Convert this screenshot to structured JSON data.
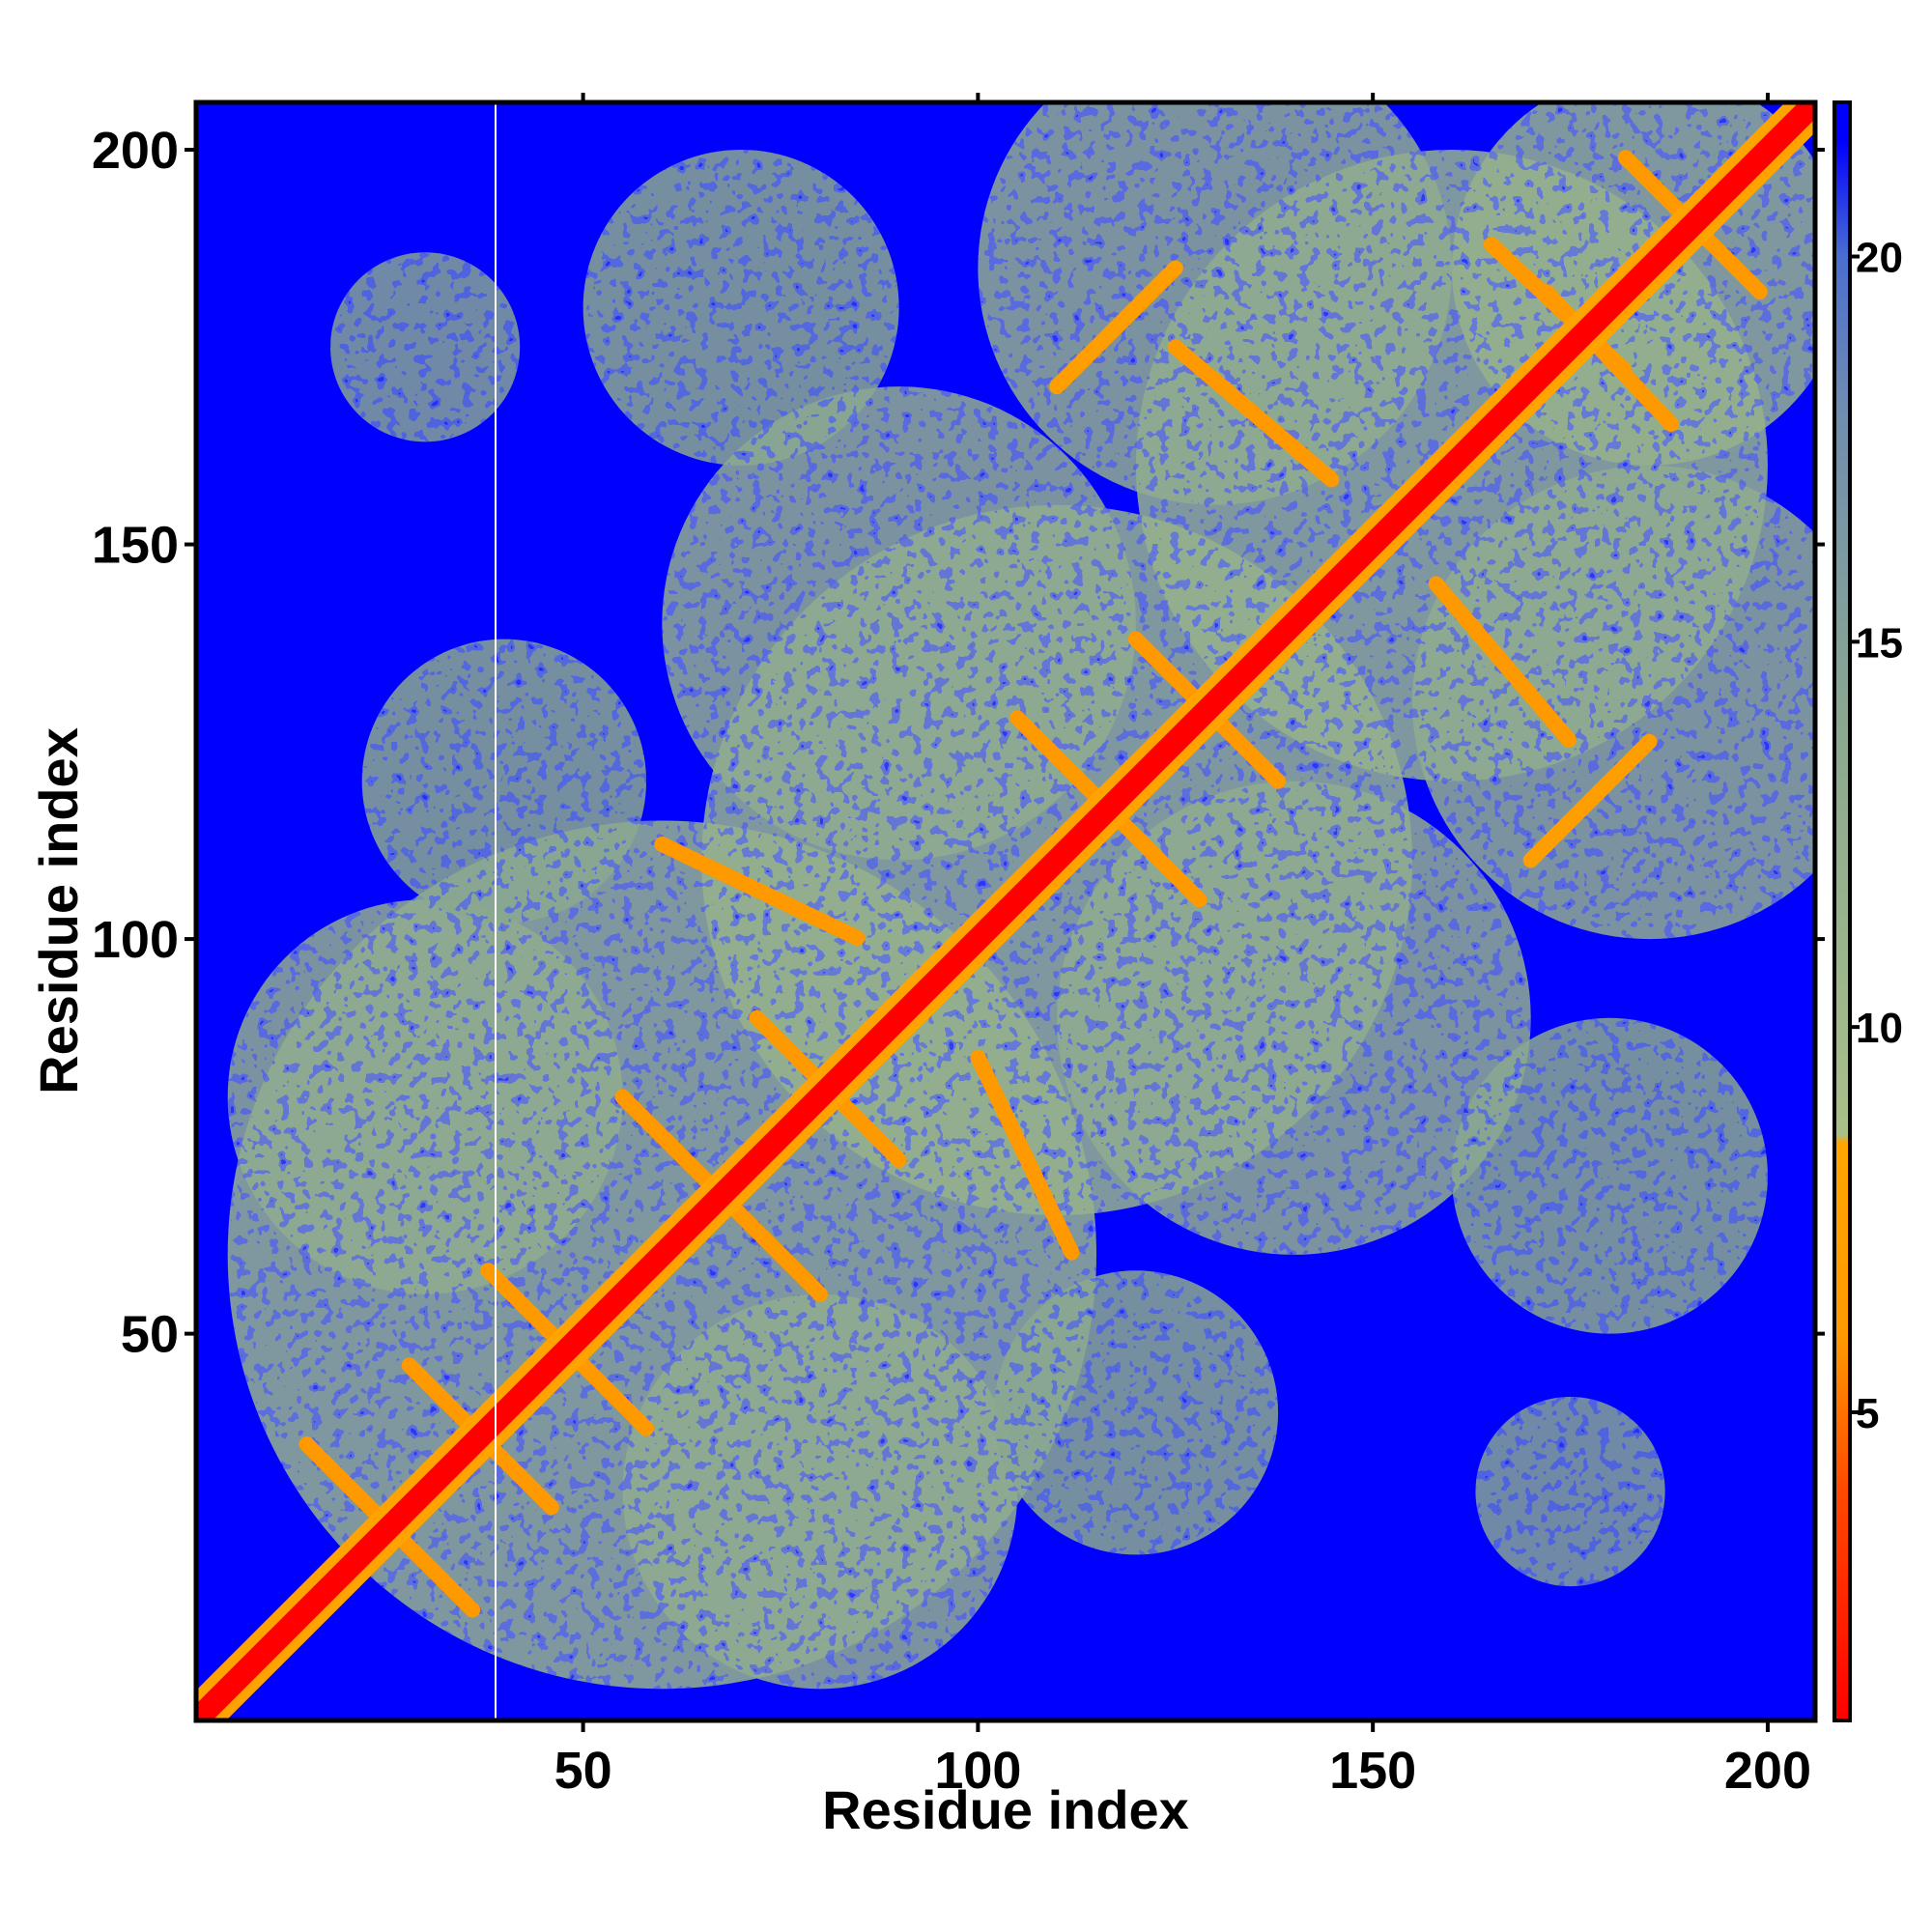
{
  "chart_data": {
    "type": "heatmap",
    "title": "",
    "xlabel": "Residue index",
    "ylabel": "Residue index",
    "xlim": [
      1,
      206
    ],
    "ylim": [
      1,
      206
    ],
    "x_ticks": [
      50,
      100,
      150,
      200
    ],
    "y_ticks": [
      50,
      100,
      150,
      200
    ],
    "n_residues": 206,
    "colorbar": {
      "range": [
        1,
        22
      ],
      "ticks": [
        5,
        10,
        15,
        20
      ],
      "stops": [
        {
          "value": 1,
          "color": "#ff0000"
        },
        {
          "value": 4,
          "color": "#ff4a00"
        },
        {
          "value": 6,
          "color": "#ff9900"
        },
        {
          "value": 8.5,
          "color": "#ffa500"
        },
        {
          "value": 8.6,
          "color": "#a8c088"
        },
        {
          "value": 14,
          "color": "#8aa890"
        },
        {
          "value": 18,
          "color": "#6f8db0"
        },
        {
          "value": 20,
          "color": "#4a6ed0"
        },
        {
          "value": 21.5,
          "color": "#0000ff"
        }
      ]
    },
    "background_color": "#0000ff",
    "diagonal_color": "#ff0000",
    "contact_regions": [
      {
        "x_center": 60,
        "y_center": 60,
        "radius": 55,
        "value": 12
      },
      {
        "x_center": 110,
        "y_center": 110,
        "radius": 45,
        "value": 12
      },
      {
        "x_center": 160,
        "y_center": 160,
        "radius": 40,
        "value": 12
      },
      {
        "x_center": 185,
        "y_center": 185,
        "radius": 25,
        "value": 12
      },
      {
        "x_center": 30,
        "y_center": 80,
        "radius": 25,
        "value": 13
      },
      {
        "x_center": 80,
        "y_center": 30,
        "radius": 25,
        "value": 13
      },
      {
        "x_center": 90,
        "y_center": 140,
        "radius": 30,
        "value": 13
      },
      {
        "x_center": 140,
        "y_center": 90,
        "radius": 30,
        "value": 13
      },
      {
        "x_center": 130,
        "y_center": 185,
        "radius": 30,
        "value": 13
      },
      {
        "x_center": 185,
        "y_center": 130,
        "radius": 30,
        "value": 13
      },
      {
        "x_center": 40,
        "y_center": 120,
        "radius": 18,
        "value": 14
      },
      {
        "x_center": 120,
        "y_center": 40,
        "radius": 18,
        "value": 14
      },
      {
        "x_center": 70,
        "y_center": 180,
        "radius": 20,
        "value": 14
      },
      {
        "x_center": 180,
        "y_center": 70,
        "radius": 20,
        "value": 14
      },
      {
        "x_center": 30,
        "y_center": 175,
        "radius": 12,
        "value": 15
      },
      {
        "x_center": 175,
        "y_center": 30,
        "radius": 12,
        "value": 15
      }
    ],
    "strands": [
      {
        "x1": 15,
        "y1": 36,
        "x2": 36,
        "y2": 15,
        "value": 6
      },
      {
        "x1": 28,
        "y1": 46,
        "x2": 46,
        "y2": 28,
        "value": 6
      },
      {
        "x1": 38,
        "y1": 58,
        "x2": 58,
        "y2": 38,
        "value": 6
      },
      {
        "x1": 55,
        "y1": 80,
        "x2": 80,
        "y2": 55,
        "value": 6
      },
      {
        "x1": 72,
        "y1": 90,
        "x2": 90,
        "y2": 72,
        "value": 6
      },
      {
        "x1": 60,
        "y1": 112,
        "x2": 85,
        "y2": 100,
        "value": 6
      },
      {
        "x1": 100,
        "y1": 85,
        "x2": 112,
        "y2": 60,
        "value": 6
      },
      {
        "x1": 105,
        "y1": 128,
        "x2": 128,
        "y2": 105,
        "value": 6
      },
      {
        "x1": 120,
        "y1": 138,
        "x2": 138,
        "y2": 120,
        "value": 6
      },
      {
        "x1": 110,
        "y1": 170,
        "x2": 125,
        "y2": 185,
        "value": 7
      },
      {
        "x1": 170,
        "y1": 110,
        "x2": 185,
        "y2": 125,
        "value": 7
      },
      {
        "x1": 125,
        "y1": 175,
        "x2": 145,
        "y2": 158,
        "value": 6
      },
      {
        "x1": 158,
        "y1": 145,
        "x2": 175,
        "y2": 125,
        "value": 6
      },
      {
        "x1": 165,
        "y1": 188,
        "x2": 182,
        "y2": 172,
        "value": 6
      },
      {
        "x1": 172,
        "y1": 182,
        "x2": 188,
        "y2": 165,
        "value": 6
      },
      {
        "x1": 182,
        "y1": 199,
        "x2": 199,
        "y2": 182,
        "value": 6
      }
    ]
  }
}
